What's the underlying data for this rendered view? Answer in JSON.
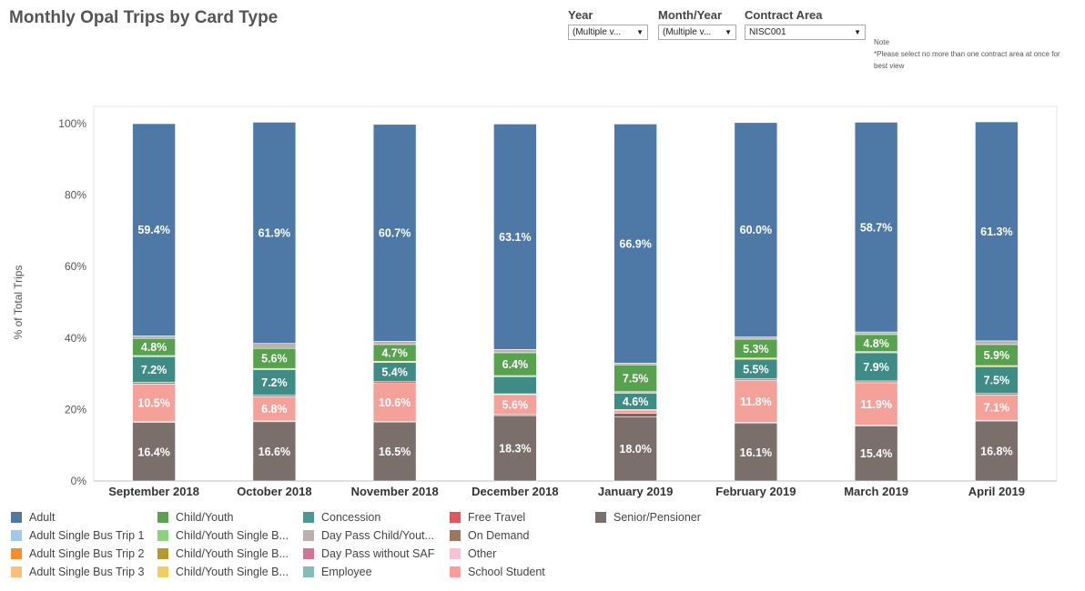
{
  "title": "Monthly Opal Trips by Card Type",
  "filters": [
    {
      "label": "Year",
      "value": "(Multiple v...",
      "left": 624,
      "width": 88
    },
    {
      "label": "Month/Year",
      "value": "(Multiple v...",
      "left": 723,
      "width": 86
    },
    {
      "label": "Contract Area",
      "value": "NISC001",
      "left": 818,
      "width": 133
    }
  ],
  "note": {
    "title": "Note",
    "text": "*Please select no more than one contract area at once for best view"
  },
  "chart_data": {
    "type": "bar",
    "stacked": true,
    "normalized": true,
    "title": "",
    "xlabel": "",
    "ylabel": "% of Total Trips",
    "ylim": [
      0,
      100
    ],
    "yticks": [
      "0%",
      "20%",
      "40%",
      "60%",
      "80%",
      "100%"
    ],
    "categories": [
      "September 2018",
      "October 2018",
      "November 2018",
      "December 2018",
      "January 2019",
      "February 2019",
      "March 2019",
      "April 2019"
    ],
    "series": [
      {
        "name": "Senior/Pensioner",
        "color": "#7a6f6b",
        "values": [
          16.4,
          16.6,
          16.5,
          18.3,
          18.0,
          16.1,
          15.4,
          16.8
        ],
        "labels": [
          "16.4%",
          "16.6%",
          "16.5%",
          "18.3%",
          "18.0%",
          "16.1%",
          "15.4%",
          "16.8%"
        ]
      },
      {
        "name": "Adult Single Bus Trip 3",
        "color": "#7f5f55",
        "values": [
          0.2,
          0.2,
          0.2,
          0.3,
          0.9,
          0.3,
          0.2,
          0.2
        ],
        "labels": [
          "",
          "",
          "",
          "",
          "",
          "",
          "",
          ""
        ]
      },
      {
        "name": "School Student",
        "color": "#f4a19a",
        "values": [
          10.5,
          6.8,
          10.6,
          5.6,
          0.8,
          11.8,
          11.9,
          7.1
        ],
        "labels": [
          "10.5%",
          "6.8%",
          "10.6%",
          "5.6%",
          "",
          "11.8%",
          "11.9%",
          "7.1%"
        ]
      },
      {
        "name": "Free Travel",
        "color": "#e06565",
        "values": [
          0.5,
          0.4,
          0.5,
          0.2,
          0.3,
          0.4,
          0.5,
          0.4
        ],
        "labels": [
          "",
          "",
          "",
          "",
          "",
          "",
          "",
          ""
        ]
      },
      {
        "name": "Concession",
        "color": "#3f8c87",
        "values": [
          7.2,
          7.2,
          5.4,
          4.8,
          4.6,
          5.5,
          7.9,
          7.5
        ],
        "labels": [
          "7.2%",
          "7.2%",
          "5.4%",
          "",
          "4.6%",
          "5.5%",
          "7.9%",
          "7.5%"
        ]
      },
      {
        "name": "Child/Youth Single Bus Trip 3",
        "color": "#e8c757",
        "values": [
          0.3,
          0.3,
          0.3,
          0.3,
          0.4,
          0.3,
          0.3,
          0.3
        ],
        "labels": [
          "",
          "",
          "",
          "",
          "",
          "",
          "",
          ""
        ]
      },
      {
        "name": "Child/Youth",
        "color": "#58a14e",
        "values": [
          4.8,
          5.6,
          4.7,
          6.4,
          7.5,
          5.3,
          4.8,
          5.9
        ],
        "labels": [
          "4.8%",
          "5.6%",
          "4.7%",
          "6.4%",
          "7.5%",
          "5.3%",
          "4.8%",
          "5.9%"
        ]
      },
      {
        "name": "Day Pass Child/Youth",
        "color": "#bab0ac",
        "values": [
          0.7,
          1.4,
          0.9,
          0.9,
          0.5,
          0.6,
          0.7,
          1.0
        ],
        "labels": [
          "",
          "",
          "",
          "",
          "",
          "",
          "",
          ""
        ]
      },
      {
        "name": "Adult",
        "color": "#4e79a7",
        "values": [
          59.4,
          61.9,
          60.7,
          63.1,
          66.9,
          60.0,
          58.7,
          61.3
        ],
        "labels": [
          "59.4%",
          "61.9%",
          "60.7%",
          "63.1%",
          "66.9%",
          "60.0%",
          "58.7%",
          "61.3%"
        ]
      }
    ]
  },
  "legend": {
    "columns": [
      [
        {
          "name": "Adult",
          "color": "#4e79a7"
        },
        {
          "name": "Adult Single Bus Trip 1",
          "color": "#a0cbe8"
        },
        {
          "name": "Adult Single Bus Trip 2",
          "color": "#f28e2b"
        },
        {
          "name": "Adult Single Bus Trip 3",
          "color": "#ffbe7d"
        }
      ],
      [
        {
          "name": "Child/Youth",
          "color": "#59a14f"
        },
        {
          "name": "Child/Youth Single B...",
          "color": "#8cd17d"
        },
        {
          "name": "Child/Youth Single B...",
          "color": "#b6992d"
        },
        {
          "name": "Child/Youth Single B...",
          "color": "#f1ce63"
        }
      ],
      [
        {
          "name": "Concession",
          "color": "#499894"
        },
        {
          "name": "Day Pass Child/Yout...",
          "color": "#bab0ac"
        },
        {
          "name": "Day Pass without SAF",
          "color": "#d37295"
        },
        {
          "name": "Employee",
          "color": "#86bcb6"
        }
      ],
      [
        {
          "name": "Free Travel",
          "color": "#e15759"
        },
        {
          "name": "On Demand",
          "color": "#9d7660"
        },
        {
          "name": "Other",
          "color": "#fabfd2"
        },
        {
          "name": "School Student",
          "color": "#ff9d9a"
        }
      ],
      [
        {
          "name": "Senior/Pensioner",
          "color": "#79706e"
        }
      ]
    ]
  }
}
